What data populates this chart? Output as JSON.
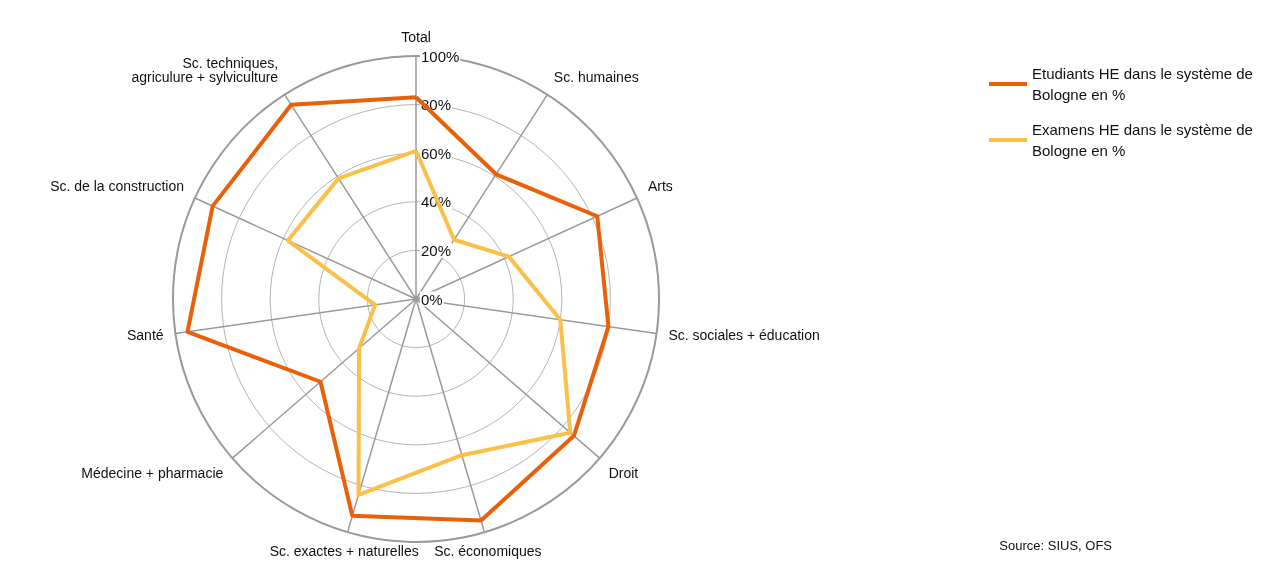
{
  "chart_data": {
    "type": "radar",
    "categories": [
      "Total",
      "Sc. humaines",
      "Arts",
      "Sc. sociales + éducation",
      "Droit",
      "Sc. économiques",
      "Sc. exactes + naturelles",
      "Médecine + pharmacie",
      "Santé",
      "Sc. de la construction",
      "Sc. techniques,\nagriculure + sylviculture"
    ],
    "series": [
      {
        "name": "Etudiants HE dans le système de Bologne en %",
        "color": "#e8600a",
        "values": [
          83,
          61,
          82,
          80,
          86,
          95,
          93,
          52,
          95,
          92,
          95
        ]
      },
      {
        "name": "Examens HE dans le système de Bologne en %",
        "color": "#fbc04a",
        "values": [
          61,
          29,
          42,
          60,
          84,
          67,
          84,
          31,
          17,
          58,
          59
        ]
      }
    ],
    "ylim": [
      0,
      100
    ],
    "yticks": [
      {
        "value": 0,
        "label": "0%"
      },
      {
        "value": 20,
        "label": "20%"
      },
      {
        "value": 40,
        "label": "40%"
      },
      {
        "value": 60,
        "label": "60%"
      },
      {
        "value": 80,
        "label": "80%"
      },
      {
        "value": 100,
        "label": "100%"
      }
    ],
    "grid": true,
    "legend": "top right",
    "marker": "none",
    "annotations": [
      "Source: SIUS, OFS"
    ]
  }
}
